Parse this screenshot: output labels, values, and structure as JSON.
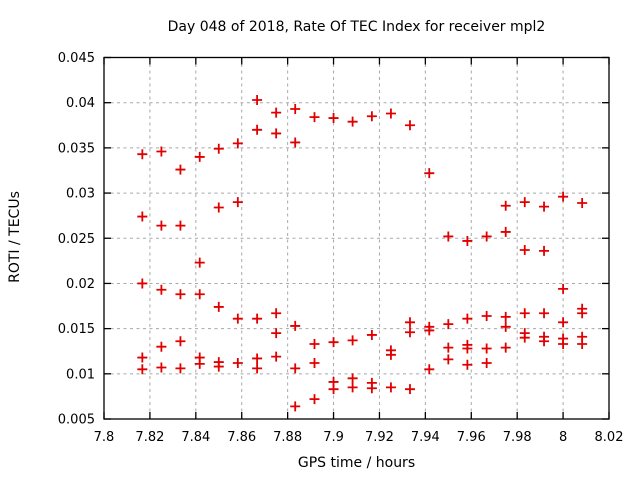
{
  "chart_data": {
    "type": "scatter",
    "title": "Day 048 of 2018, Rate Of TEC Index for receiver mpl2",
    "xlabel": "GPS time / hours",
    "ylabel": "ROTI / TECUs",
    "xlim": [
      7.8,
      8.02
    ],
    "ylim": [
      0.005,
      0.045
    ],
    "xticks": [
      7.8,
      7.82,
      7.84,
      7.86,
      7.88,
      7.9,
      7.92,
      7.94,
      7.96,
      7.98,
      8.0,
      8.02
    ],
    "xtick_labels": [
      "7.8",
      "7.82",
      "7.84",
      "7.86",
      "7.88",
      "7.9",
      "7.92",
      "7.94",
      "7.96",
      "7.98",
      "8",
      "8.02"
    ],
    "yticks": [
      0.005,
      0.01,
      0.015,
      0.02,
      0.025,
      0.03,
      0.035,
      0.04,
      0.045
    ],
    "ytick_labels": [
      "0.005",
      "0.01",
      "0.015",
      "0.02",
      "0.025",
      "0.03",
      "0.035",
      "0.04",
      "0.045"
    ],
    "grid": true,
    "legend": "none",
    "marker": {
      "shape": "plus",
      "color": "#e00000",
      "size": 10
    },
    "grid_color": "#a8a8a8",
    "border_color": "#000000",
    "series": [
      {
        "name": "ROTI",
        "points": [
          [
            7.8167,
            0.0343
          ],
          [
            7.8167,
            0.0274
          ],
          [
            7.8167,
            0.02
          ],
          [
            7.8167,
            0.0118
          ],
          [
            7.8167,
            0.0105
          ],
          [
            7.825,
            0.0346
          ],
          [
            7.825,
            0.0264
          ],
          [
            7.825,
            0.0193
          ],
          [
            7.825,
            0.013
          ],
          [
            7.825,
            0.0107
          ],
          [
            7.8333,
            0.0326
          ],
          [
            7.8333,
            0.0264
          ],
          [
            7.8333,
            0.0188
          ],
          [
            7.8333,
            0.0136
          ],
          [
            7.8333,
            0.0106
          ],
          [
            7.8417,
            0.034
          ],
          [
            7.8417,
            0.0223
          ],
          [
            7.8417,
            0.0188
          ],
          [
            7.8417,
            0.0118
          ],
          [
            7.8417,
            0.0111
          ],
          [
            7.85,
            0.0349
          ],
          [
            7.85,
            0.0284
          ],
          [
            7.85,
            0.0174
          ],
          [
            7.85,
            0.0113
          ],
          [
            7.85,
            0.0108
          ],
          [
            7.8583,
            0.0355
          ],
          [
            7.8583,
            0.029
          ],
          [
            7.8583,
            0.0161
          ],
          [
            7.8583,
            0.0112
          ],
          [
            7.8667,
            0.0403
          ],
          [
            7.8667,
            0.037
          ],
          [
            7.8667,
            0.0161
          ],
          [
            7.8667,
            0.0117
          ],
          [
            7.8667,
            0.0106
          ],
          [
            7.875,
            0.0389
          ],
          [
            7.875,
            0.0366
          ],
          [
            7.875,
            0.0167
          ],
          [
            7.875,
            0.0145
          ],
          [
            7.875,
            0.0119
          ],
          [
            7.8833,
            0.0393
          ],
          [
            7.8833,
            0.0356
          ],
          [
            7.8833,
            0.0153
          ],
          [
            7.8833,
            0.0106
          ],
          [
            7.8833,
            0.0064
          ],
          [
            7.8917,
            0.0384
          ],
          [
            7.8917,
            0.0133
          ],
          [
            7.8917,
            0.0112
          ],
          [
            7.8917,
            0.0072
          ],
          [
            7.9,
            0.0383
          ],
          [
            7.9,
            0.0135
          ],
          [
            7.9,
            0.0091
          ],
          [
            7.9,
            0.0083
          ],
          [
            7.9083,
            0.0379
          ],
          [
            7.9083,
            0.0137
          ],
          [
            7.9083,
            0.0095
          ],
          [
            7.9083,
            0.0085
          ],
          [
            7.9167,
            0.0385
          ],
          [
            7.9167,
            0.0143
          ],
          [
            7.9167,
            0.009
          ],
          [
            7.9167,
            0.0084
          ],
          [
            7.925,
            0.0388
          ],
          [
            7.925,
            0.0126
          ],
          [
            7.925,
            0.0121
          ],
          [
            7.925,
            0.0085
          ],
          [
            7.9333,
            0.0375
          ],
          [
            7.9333,
            0.0157
          ],
          [
            7.9333,
            0.0146
          ],
          [
            7.9333,
            0.0083
          ],
          [
            7.9417,
            0.0322
          ],
          [
            7.9417,
            0.0152
          ],
          [
            7.9417,
            0.0148
          ],
          [
            7.9417,
            0.0105
          ],
          [
            7.95,
            0.0252
          ],
          [
            7.95,
            0.0155
          ],
          [
            7.95,
            0.0129
          ],
          [
            7.95,
            0.0116
          ],
          [
            7.9583,
            0.0247
          ],
          [
            7.9583,
            0.0161
          ],
          [
            7.9583,
            0.0132
          ],
          [
            7.9583,
            0.0128
          ],
          [
            7.9583,
            0.011
          ],
          [
            7.9667,
            0.0252
          ],
          [
            7.9667,
            0.0164
          ],
          [
            7.9667,
            0.0128
          ],
          [
            7.9667,
            0.0112
          ],
          [
            7.975,
            0.0286
          ],
          [
            7.975,
            0.0257
          ],
          [
            7.975,
            0.0163
          ],
          [
            7.975,
            0.0152
          ],
          [
            7.975,
            0.0129
          ],
          [
            7.9833,
            0.029
          ],
          [
            7.9833,
            0.0237
          ],
          [
            7.9833,
            0.0167
          ],
          [
            7.9833,
            0.0145
          ],
          [
            7.9833,
            0.014
          ],
          [
            7.9917,
            0.0285
          ],
          [
            7.9917,
            0.0236
          ],
          [
            7.9917,
            0.0167
          ],
          [
            7.9917,
            0.0141
          ],
          [
            7.9917,
            0.0136
          ],
          [
            8.0,
            0.0296
          ],
          [
            8.0,
            0.0194
          ],
          [
            8.0,
            0.0157
          ],
          [
            8.0,
            0.0139
          ],
          [
            8.0,
            0.0133
          ],
          [
            8.0083,
            0.0289
          ],
          [
            8.0083,
            0.0172
          ],
          [
            8.0083,
            0.0167
          ],
          [
            8.0083,
            0.0141
          ],
          [
            8.0083,
            0.0133
          ]
        ]
      }
    ]
  }
}
